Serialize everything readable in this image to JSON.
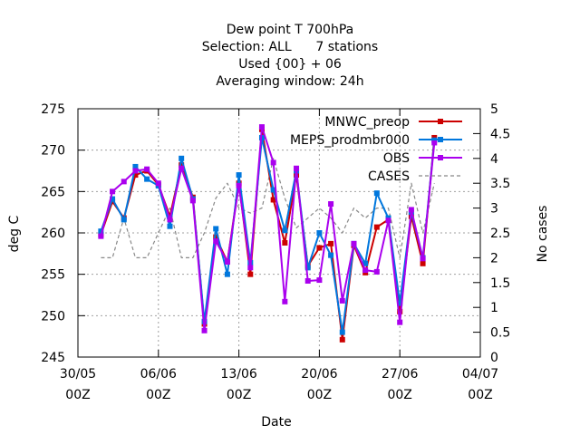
{
  "chart_data": {
    "type": "line",
    "title_lines": [
      "Dew point T 700hPa",
      "Selection: ALL      7 stations",
      "Used {00} + 06",
      "Averaging window: 24h"
    ],
    "xlabel": "Date",
    "ylabel": "deg C",
    "y2label": "No cases",
    "xlim": [
      "2025-05-30 00Z",
      "2025-07-04 00Z"
    ],
    "ylim": [
      245,
      275
    ],
    "y2lim": [
      0,
      5
    ],
    "grid": true,
    "legend_position": "top-right",
    "x_ticks": [
      {
        "line1": "30/05",
        "line2": "00Z",
        "x": "2025-05-30"
      },
      {
        "line1": "06/06",
        "line2": "00Z",
        "x": "2025-06-06"
      },
      {
        "line1": "13/06",
        "line2": "00Z",
        "x": "2025-06-13"
      },
      {
        "line1": "20/06",
        "line2": "00Z",
        "x": "2025-06-20"
      },
      {
        "line1": "27/06",
        "line2": "00Z",
        "x": "2025-06-27"
      },
      {
        "line1": "04/07",
        "line2": "00Z",
        "x": "2025-07-04"
      }
    ],
    "y_ticks": [
      "245",
      "250",
      "255",
      "260",
      "265",
      "270",
      "275"
    ],
    "y2_ticks": [
      "0",
      "0.5",
      "1",
      "1.5",
      "2",
      "2.5",
      "3",
      "3.5",
      "4",
      "4.5",
      "5"
    ],
    "x": [
      "2025-06-01",
      "2025-06-02",
      "2025-06-03",
      "2025-06-04",
      "2025-06-05",
      "2025-06-06",
      "2025-06-07",
      "2025-06-08",
      "2025-06-09",
      "2025-06-10",
      "2025-06-11",
      "2025-06-12",
      "2025-06-13",
      "2025-06-14",
      "2025-06-15",
      "2025-06-16",
      "2025-06-17",
      "2025-06-18",
      "2025-06-19",
      "2025-06-20",
      "2025-06-21",
      "2025-06-22",
      "2025-06-23",
      "2025-06-24",
      "2025-06-25",
      "2025-06-26",
      "2025-06-27",
      "2025-06-28",
      "2025-06-29",
      "2025-06-30"
    ],
    "series": [
      {
        "name": "MNWC_preop",
        "color": "#cc0000",
        "marker": "square",
        "values": [
          259.8,
          263.8,
          261.8,
          267.0,
          267.5,
          265.8,
          262.0,
          268.2,
          264.3,
          249.0,
          259.5,
          256.5,
          266.0,
          255.0,
          272.5,
          264.0,
          258.8,
          267.0,
          256.0,
          258.2,
          258.7,
          247.1,
          258.5,
          255.2,
          260.7,
          261.6,
          250.5,
          262.0,
          256.3,
          271.5
        ]
      },
      {
        "name": "MEPS_prodmbr000",
        "color": "#0077dd",
        "marker": "square",
        "values": [
          260.2,
          264.1,
          261.6,
          268.0,
          266.5,
          265.7,
          260.8,
          269.0,
          264.1,
          249.3,
          260.5,
          255.0,
          267.0,
          256.4,
          271.5,
          265.2,
          260.3,
          267.5,
          255.8,
          260.0,
          257.3,
          248.0,
          258.7,
          256.3,
          264.8,
          261.8,
          251.5,
          262.5,
          257.0,
          271.2
        ]
      },
      {
        "name": "OBS",
        "color": "#aa00ee",
        "marker": "square",
        "values": [
          259.6,
          265.0,
          266.2,
          267.5,
          267.7,
          266.0,
          261.6,
          267.8,
          263.9,
          248.2,
          259.0,
          256.5,
          265.7,
          255.8,
          272.8,
          268.5,
          251.7,
          267.8,
          254.2,
          254.3,
          263.5,
          251.8,
          258.7,
          255.5,
          255.3,
          261.5,
          249.2,
          262.8,
          256.9,
          270.9
        ]
      },
      {
        "name": "CASES",
        "color": "#888888",
        "marker": "none",
        "axis": "y2",
        "values": [
          2.0,
          2.0,
          2.8,
          2.0,
          2.0,
          2.5,
          3.0,
          2.0,
          2.0,
          2.5,
          3.2,
          3.5,
          3.0,
          2.9,
          3.0,
          4.0,
          3.2,
          2.6,
          2.8,
          3.0,
          2.8,
          2.5,
          3.0,
          2.8,
          3.0,
          3.0,
          2.0,
          3.5,
          2.5,
          3.5
        ]
      }
    ]
  }
}
